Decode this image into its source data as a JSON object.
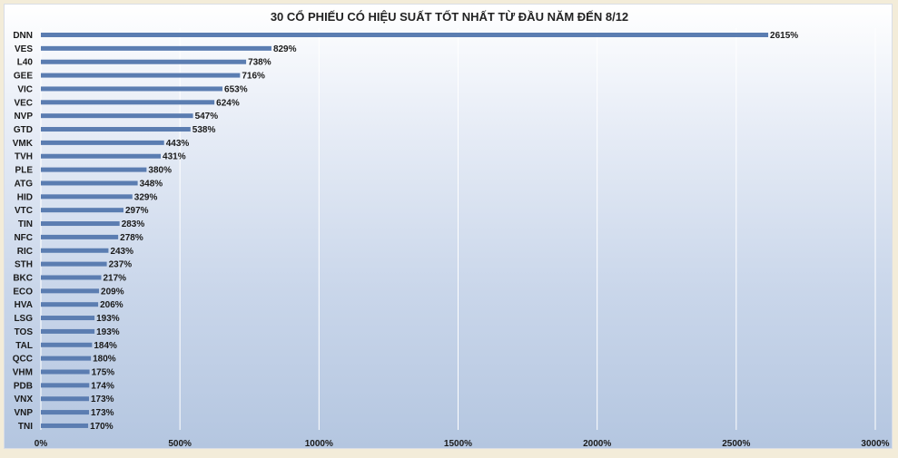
{
  "chart_data": {
    "type": "bar",
    "orientation": "horizontal",
    "title": "30 CỔ PHIẾU CÓ HIỆU SUẤT TỐT NHẤT TỪ ĐẦU NĂM ĐẾN 8/12",
    "categories": [
      "DNN",
      "VES",
      "L40",
      "GEE",
      "VIC",
      "VEC",
      "NVP",
      "GTD",
      "VMK",
      "TVH",
      "PLE",
      "ATG",
      "HID",
      "VTC",
      "TIN",
      "NFC",
      "RIC",
      "STH",
      "BKC",
      "ECO",
      "HVA",
      "LSG",
      "TOS",
      "TAL",
      "QCC",
      "VHM",
      "PDB",
      "VNX",
      "VNP",
      "TNI"
    ],
    "values": [
      2615,
      829,
      738,
      716,
      653,
      624,
      547,
      538,
      443,
      431,
      380,
      348,
      329,
      297,
      283,
      278,
      243,
      237,
      217,
      209,
      206,
      193,
      193,
      184,
      180,
      175,
      174,
      173,
      173,
      170
    ],
    "value_labels": [
      "2615%",
      "829%",
      "738%",
      "716%",
      "653%",
      "624%",
      "547%",
      "538%",
      "443%",
      "431%",
      "380%",
      "348%",
      "329%",
      "297%",
      "283%",
      "278%",
      "243%",
      "237%",
      "217%",
      "209%",
      "206%",
      "193%",
      "193%",
      "184%",
      "180%",
      "175%",
      "174%",
      "173%",
      "173%",
      "170%"
    ],
    "xlim": [
      0,
      3000
    ],
    "x_ticks": [
      0,
      500,
      1000,
      1500,
      2000,
      2500,
      3000
    ],
    "x_tick_labels": [
      "0%",
      "500%",
      "1000%",
      "1500%",
      "2000%",
      "2500%",
      "3000%"
    ],
    "xlabel": "",
    "ylabel": "",
    "grid": "vertical",
    "legend": "none",
    "bar_color": "#5b7db1",
    "grid_color": "#ffffff"
  }
}
